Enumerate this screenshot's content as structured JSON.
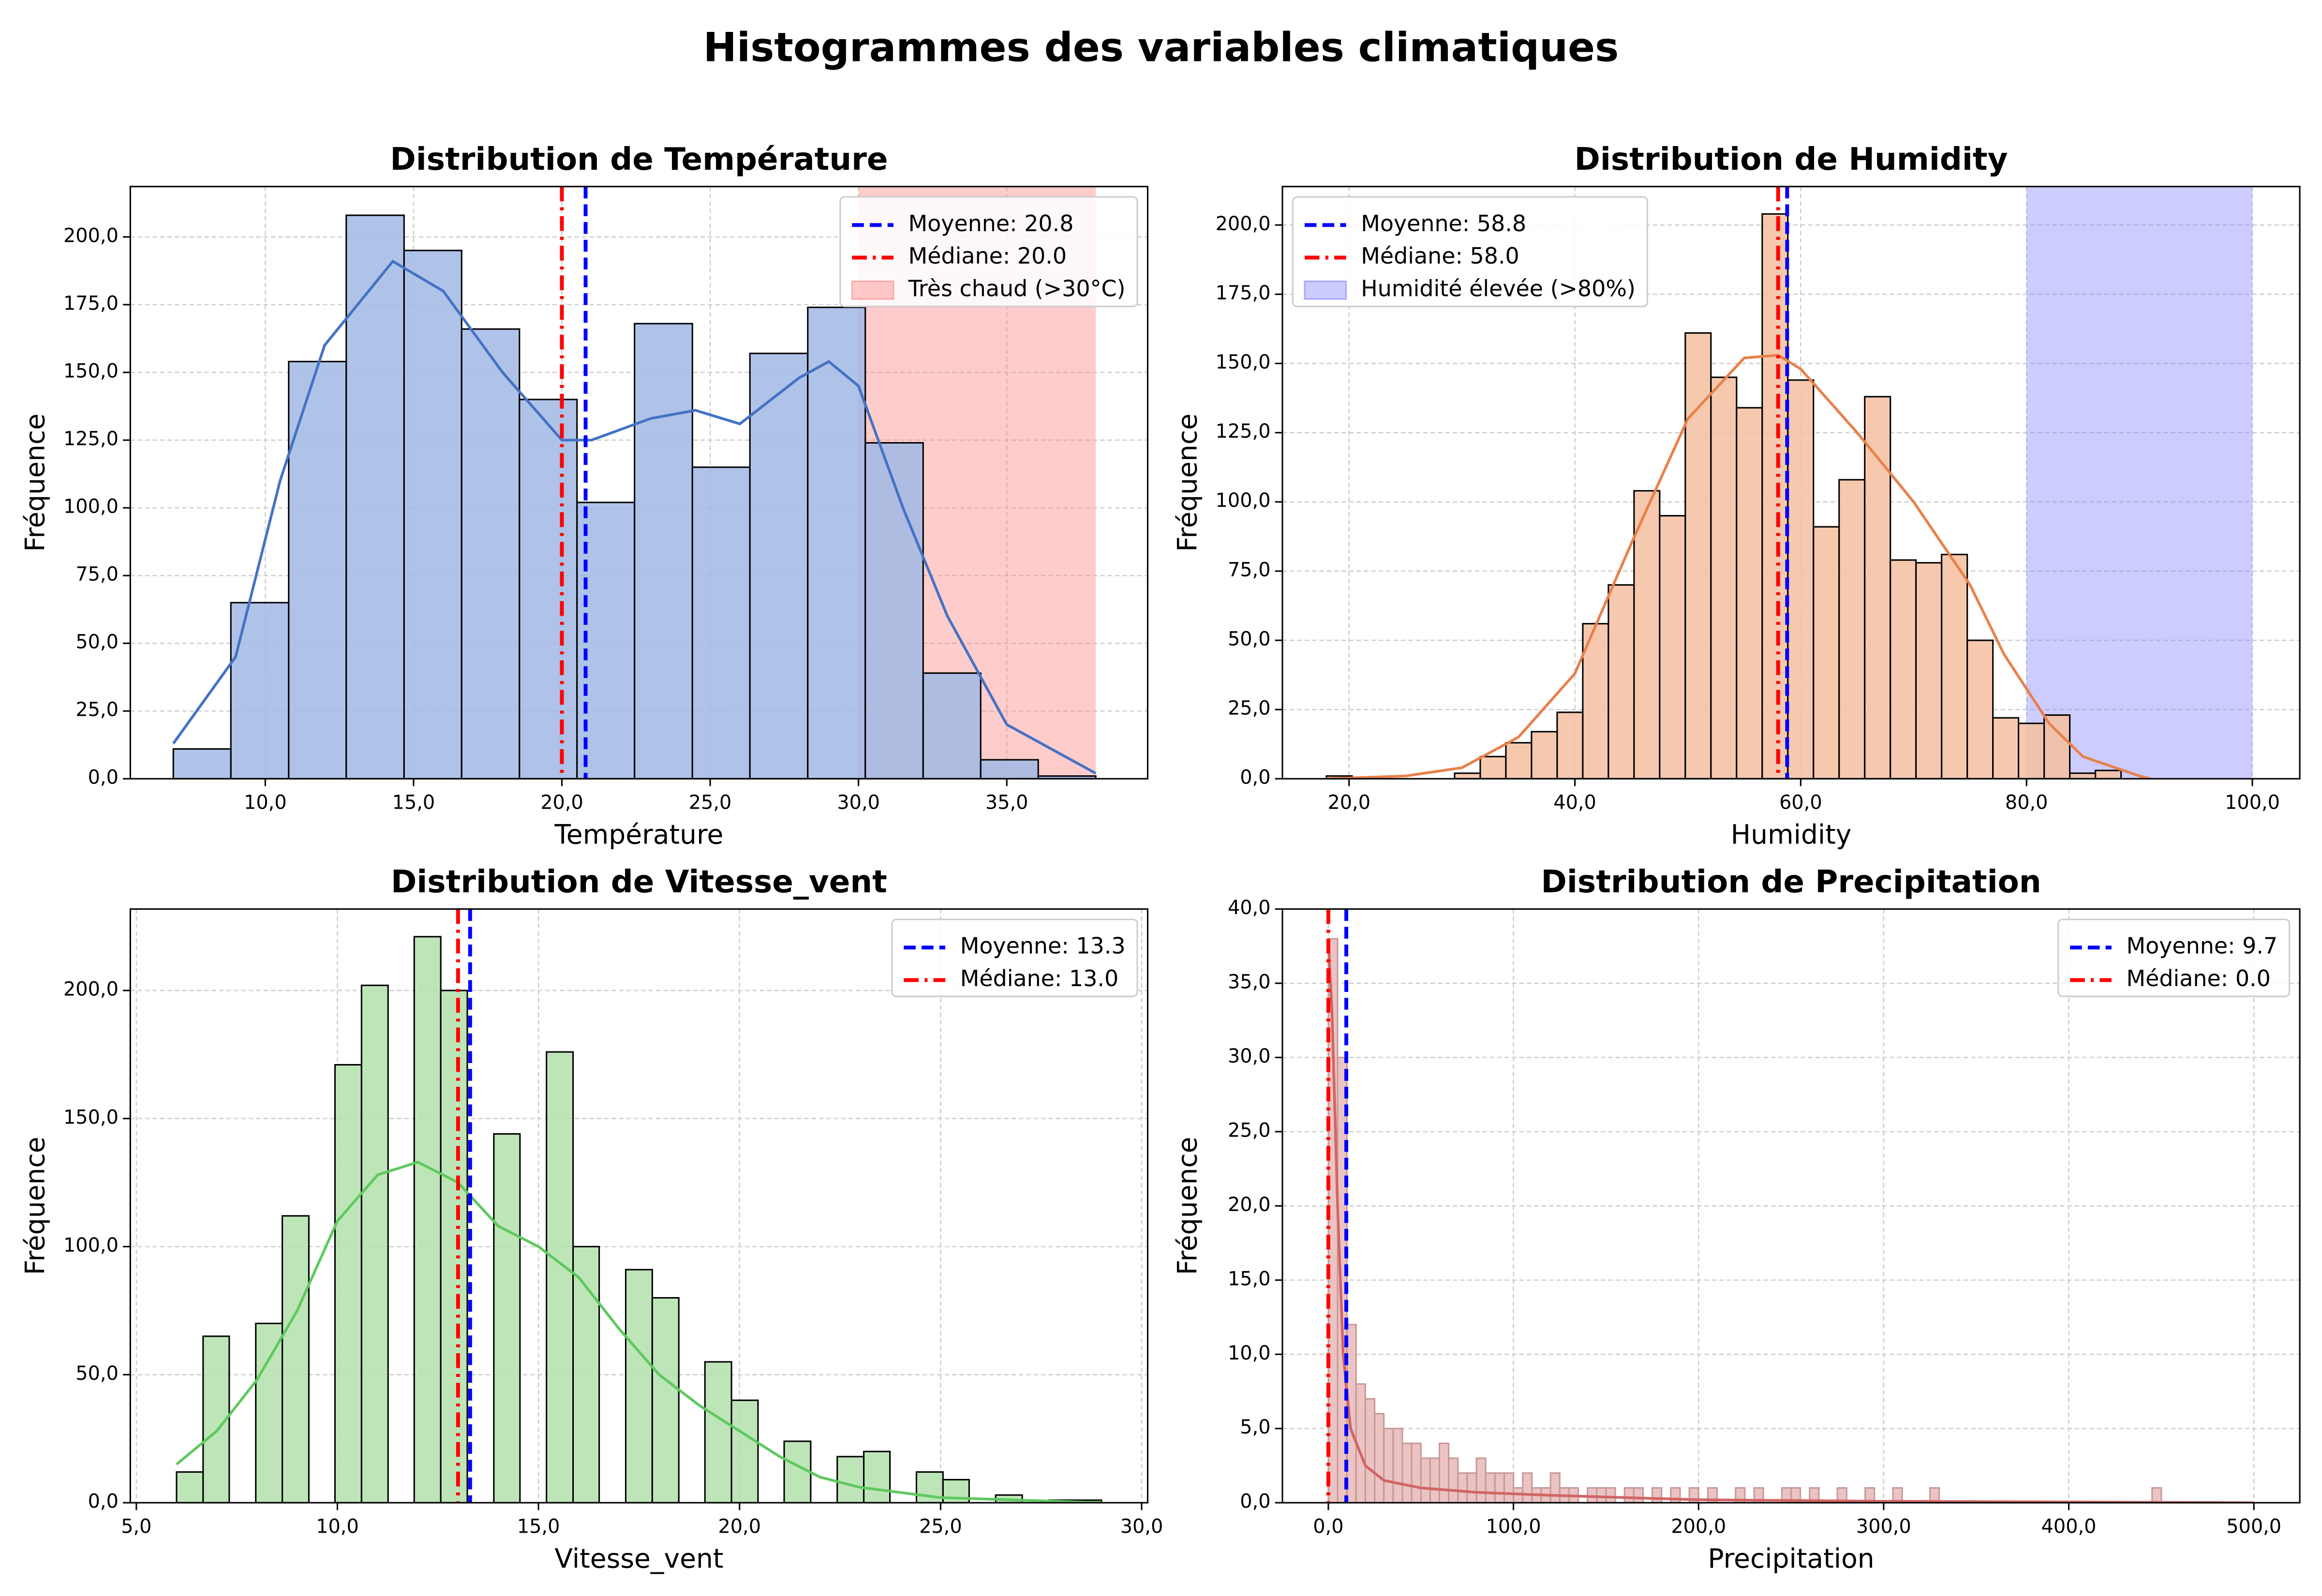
{
  "chart_data": [
    {
      "type": "histogram",
      "suptitle": "Histogrammes des variables climatiques",
      "title": "Distribution de Température",
      "xlabel": "Température",
      "ylabel": "Fréquence",
      "bins": [
        6.9,
        8.84,
        10.79,
        12.73,
        14.68,
        16.62,
        18.57,
        20.51,
        22.45,
        24.4,
        26.34,
        28.29,
        30.23,
        32.18,
        34.12,
        36.06,
        38.0
      ],
      "values": [
        11,
        65,
        154,
        208,
        195,
        166,
        140,
        102,
        168,
        115,
        157,
        174,
        124,
        39,
        7,
        1
      ],
      "color": "#a1b8e5",
      "edgecolor": "#000000",
      "kde": {
        "color": "#4472c4",
        "x": [
          6.9,
          9,
          10.5,
          12,
          14.3,
          16,
          18,
          20,
          21,
          23,
          24.5,
          26,
          28,
          29,
          30,
          31.5,
          33,
          35,
          38
        ],
        "values": [
          13,
          45,
          110,
          160,
          191,
          180,
          150,
          125,
          125,
          133,
          136,
          131,
          148,
          154,
          145,
          100,
          60,
          20,
          2
        ]
      },
      "mean": {
        "value": 20.8,
        "label": "Moyenne: 20.8",
        "color": "#0000ff"
      },
      "median": {
        "value": 20.0,
        "label": "Médiane: 20.0",
        "color": "#ff0000"
      },
      "span": {
        "range": [
          30,
          38
        ],
        "label": "Très chaud (>30°C)",
        "color": "#ff8080"
      },
      "legend": "upper right",
      "grid": true,
      "xlim": [
        5.45,
        39.75
      ],
      "ylim": [
        0,
        218.6
      ],
      "xticks": [
        {
          "value": 10,
          "label": "10,0"
        },
        {
          "value": 15,
          "label": "15,0"
        },
        {
          "value": 20,
          "label": "20,0"
        },
        {
          "value": 25,
          "label": "25,0"
        },
        {
          "value": 30,
          "label": "30,0"
        },
        {
          "value": 35,
          "label": "35,0"
        }
      ],
      "yticks": [
        {
          "value": 0,
          "label": "0,0"
        },
        {
          "value": 25,
          "label": "25,0"
        },
        {
          "value": 50,
          "label": "50,0"
        },
        {
          "value": 75,
          "label": "75,0"
        },
        {
          "value": 100,
          "label": "100,0"
        },
        {
          "value": 125,
          "label": "125,0"
        },
        {
          "value": 150,
          "label": "150,0"
        },
        {
          "value": 175,
          "label": "175,0"
        },
        {
          "value": 200,
          "label": "200,0"
        }
      ]
    },
    {
      "type": "histogram",
      "title": "Distribution de Humidity",
      "xlabel": "Humidity",
      "ylabel": "Fréquence",
      "bins": [
        18,
        20.27,
        22.54,
        24.81,
        27.08,
        29.35,
        31.62,
        33.89,
        36.16,
        38.43,
        40.7,
        42.97,
        45.24,
        47.51,
        49.78,
        52.05,
        54.32,
        56.59,
        58.86,
        61.13,
        63.4,
        65.67,
        67.94,
        70.21,
        72.48,
        74.75,
        77.02,
        79.29,
        81.56,
        83.83,
        86.1,
        88.37
      ],
      "values": [
        1,
        0,
        0,
        0,
        0,
        2,
        8,
        13,
        17,
        24,
        56,
        70,
        104,
        95,
        161,
        145,
        134,
        204,
        144,
        91,
        108,
        138,
        79,
        78,
        81,
        50,
        22,
        20,
        23,
        2,
        3
      ],
      "color": "#f4bfa0",
      "edgecolor": "#000000",
      "kde": {
        "color": "#e8804b",
        "x": [
          18,
          25,
          30,
          35,
          40,
          45,
          50,
          55,
          58,
          60,
          65,
          70,
          75,
          78,
          82,
          85,
          90,
          91
        ],
        "values": [
          0,
          1,
          4,
          15,
          38,
          85,
          130,
          152,
          153,
          148,
          125,
          100,
          70,
          45,
          20,
          8,
          1,
          0
        ]
      },
      "mean": {
        "value": 58.8,
        "label": "Moyenne: 58.8",
        "color": "#0000ff"
      },
      "median": {
        "value": 58.0,
        "label": "Médiane: 58.0",
        "color": "#ff0000"
      },
      "span": {
        "range": [
          80,
          100
        ],
        "label": "Humidité élevée (>80%)",
        "color": "#8080ff"
      },
      "legend": "upper left",
      "grid": true,
      "xlim": [
        14.1,
        104.2
      ],
      "ylim": [
        0,
        213.9
      ],
      "xticks": [
        {
          "value": 20,
          "label": "20,0"
        },
        {
          "value": 40,
          "label": "40,0"
        },
        {
          "value": 60,
          "label": "60,0"
        },
        {
          "value": 80,
          "label": "80,0"
        },
        {
          "value": 100,
          "label": "100,0"
        }
      ],
      "yticks": [
        {
          "value": 0,
          "label": "0,0"
        },
        {
          "value": 25,
          "label": "25,0"
        },
        {
          "value": 50,
          "label": "50,0"
        },
        {
          "value": 75,
          "label": "75,0"
        },
        {
          "value": 100,
          "label": "100,0"
        },
        {
          "value": 125,
          "label": "125,0"
        },
        {
          "value": 150,
          "label": "150,0"
        },
        {
          "value": 175,
          "label": "175,0"
        },
        {
          "value": 200,
          "label": "200,0"
        }
      ]
    },
    {
      "type": "histogram",
      "title": "Distribution de Vitesse_vent",
      "xlabel": "Vitesse_vent",
      "ylabel": "Fréquence",
      "bins": [
        6,
        6.66,
        7.31,
        7.97,
        8.63,
        9.29,
        9.94,
        10.6,
        11.26,
        11.91,
        12.57,
        13.23,
        13.89,
        14.54,
        15.2,
        15.86,
        16.51,
        17.17,
        17.83,
        18.49,
        19.14,
        19.8,
        20.46,
        21.11,
        21.77,
        22.43,
        23.09,
        23.74,
        24.4,
        25.06,
        25.71,
        26.37,
        27.03,
        27.69,
        28.34,
        29
      ],
      "values": [
        12,
        65,
        0,
        70,
        112,
        0,
        171,
        202,
        0,
        221,
        200,
        0,
        144,
        0,
        176,
        100,
        0,
        91,
        80,
        0,
        55,
        40,
        0,
        24,
        0,
        18,
        20,
        0,
        12,
        9,
        0,
        3,
        0,
        1,
        1
      ],
      "color": "#b3e0ab",
      "edgecolor": "#000000",
      "kde": {
        "color": "#5ec95e",
        "x": [
          6,
          7,
          8,
          9,
          10,
          11,
          12,
          13,
          14,
          15,
          16,
          17,
          18,
          19,
          20,
          21,
          22,
          23,
          24,
          25,
          27,
          29
        ],
        "values": [
          15,
          28,
          48,
          75,
          110,
          128,
          133,
          125,
          108,
          100,
          88,
          68,
          50,
          38,
          28,
          18,
          10,
          6,
          4,
          2,
          1,
          0
        ]
      },
      "mean": {
        "value": 13.3,
        "label": "Moyenne: 13.3",
        "color": "#0000ff"
      },
      "median": {
        "value": 13.0,
        "label": "Médiane: 13.0",
        "color": "#ff0000"
      },
      "legend": "upper right",
      "grid": true,
      "xlim": [
        4.85,
        30.15
      ],
      "ylim": [
        0,
        231.8
      ],
      "xticks": [
        {
          "value": 5,
          "label": "5,0"
        },
        {
          "value": 10,
          "label": "10,0"
        },
        {
          "value": 15,
          "label": "15,0"
        },
        {
          "value": 20,
          "label": "20,0"
        },
        {
          "value": 25,
          "label": "25,0"
        },
        {
          "value": 30,
          "label": "30,0"
        }
      ],
      "yticks": [
        {
          "value": 0,
          "label": "0,0"
        },
        {
          "value": 50,
          "label": "50,0"
        },
        {
          "value": 100,
          "label": "100,0"
        },
        {
          "value": 150,
          "label": "150,0"
        },
        {
          "value": 200,
          "label": "200,0"
        }
      ]
    },
    {
      "type": "histogram",
      "title": "Distribution de Precipitation",
      "xlabel": "Precipitation",
      "ylabel": "Fréquence",
      "bins": [
        0,
        5,
        10,
        15,
        20,
        25,
        30,
        35,
        40,
        45,
        50,
        55,
        60,
        65,
        70,
        75,
        80,
        85,
        90,
        95,
        100,
        105,
        110,
        115,
        120,
        125,
        130,
        135,
        140,
        145,
        150,
        155,
        160,
        165,
        170,
        175,
        180,
        185,
        190,
        195,
        200,
        205,
        210,
        215,
        220,
        225,
        230,
        235,
        240,
        245,
        250,
        255,
        260,
        265,
        270,
        275,
        280,
        285,
        290,
        295,
        300,
        305,
        310,
        315,
        320,
        325,
        330,
        335,
        340,
        345,
        350,
        355,
        360,
        365,
        370,
        375,
        380,
        385,
        390,
        395,
        400,
        405,
        410,
        415,
        420,
        425,
        430,
        435,
        440,
        445,
        450,
        455,
        460,
        465,
        470,
        475,
        480,
        485,
        490,
        495,
        500
      ],
      "values": [
        38,
        30,
        12,
        8,
        7,
        6,
        5,
        5,
        4,
        4,
        3,
        3,
        4,
        3,
        2,
        2,
        3,
        2,
        2,
        2,
        1,
        2,
        1,
        1,
        2,
        1,
        1,
        0,
        1,
        1,
        1,
        0,
        1,
        1,
        0,
        1,
        0,
        1,
        0,
        1,
        0,
        1,
        0,
        0,
        1,
        0,
        1,
        0,
        0,
        1,
        1,
        0,
        1,
        0,
        0,
        1,
        0,
        0,
        1,
        0,
        0,
        1,
        0,
        0,
        0,
        1,
        0,
        0,
        0,
        0,
        0,
        0,
        0,
        0,
        0,
        0,
        0,
        0,
        0,
        0,
        0,
        0,
        0,
        0,
        0,
        0,
        0,
        0,
        0,
        1,
        0,
        0,
        0,
        0,
        0,
        0,
        0,
        0,
        0,
        0
      ],
      "color": "#e8b8b8",
      "edgecolor": "#c89898",
      "kde": {
        "color": "#d26464",
        "x": [
          0,
          2,
          5,
          8,
          12,
          20,
          30,
          50,
          80,
          120,
          200,
          300,
          500
        ],
        "values": [
          38,
          33,
          20,
          10,
          5,
          2.5,
          1.5,
          1,
          0.7,
          0.5,
          0.2,
          0.1,
          0
        ]
      },
      "mean": {
        "value": 9.7,
        "label": "Moyenne: 9.7",
        "color": "#0000ff"
      },
      "median": {
        "value": 0.0,
        "label": "Médiane: 0.0",
        "color": "#ff0000"
      },
      "legend": "upper right",
      "grid": true,
      "xlim": [
        -24.8,
        524.8
      ],
      "ylim": [
        0,
        40
      ],
      "xticks": [
        {
          "value": 0,
          "label": "0,0"
        },
        {
          "value": 100,
          "label": "100,0"
        },
        {
          "value": 200,
          "label": "200,0"
        },
        {
          "value": 300,
          "label": "300,0"
        },
        {
          "value": 400,
          "label": "400,0"
        },
        {
          "value": 500,
          "label": "500,0"
        }
      ],
      "yticks": [
        {
          "value": 0,
          "label": "0,0"
        },
        {
          "value": 5,
          "label": "5,0"
        },
        {
          "value": 10,
          "label": "10,0"
        },
        {
          "value": 15,
          "label": "15,0"
        },
        {
          "value": 20,
          "label": "20,0"
        },
        {
          "value": 25,
          "label": "25,0"
        },
        {
          "value": 30,
          "label": "30,0"
        },
        {
          "value": 35,
          "label": "35,0"
        },
        {
          "value": 40,
          "label": "40,0"
        }
      ]
    }
  ]
}
